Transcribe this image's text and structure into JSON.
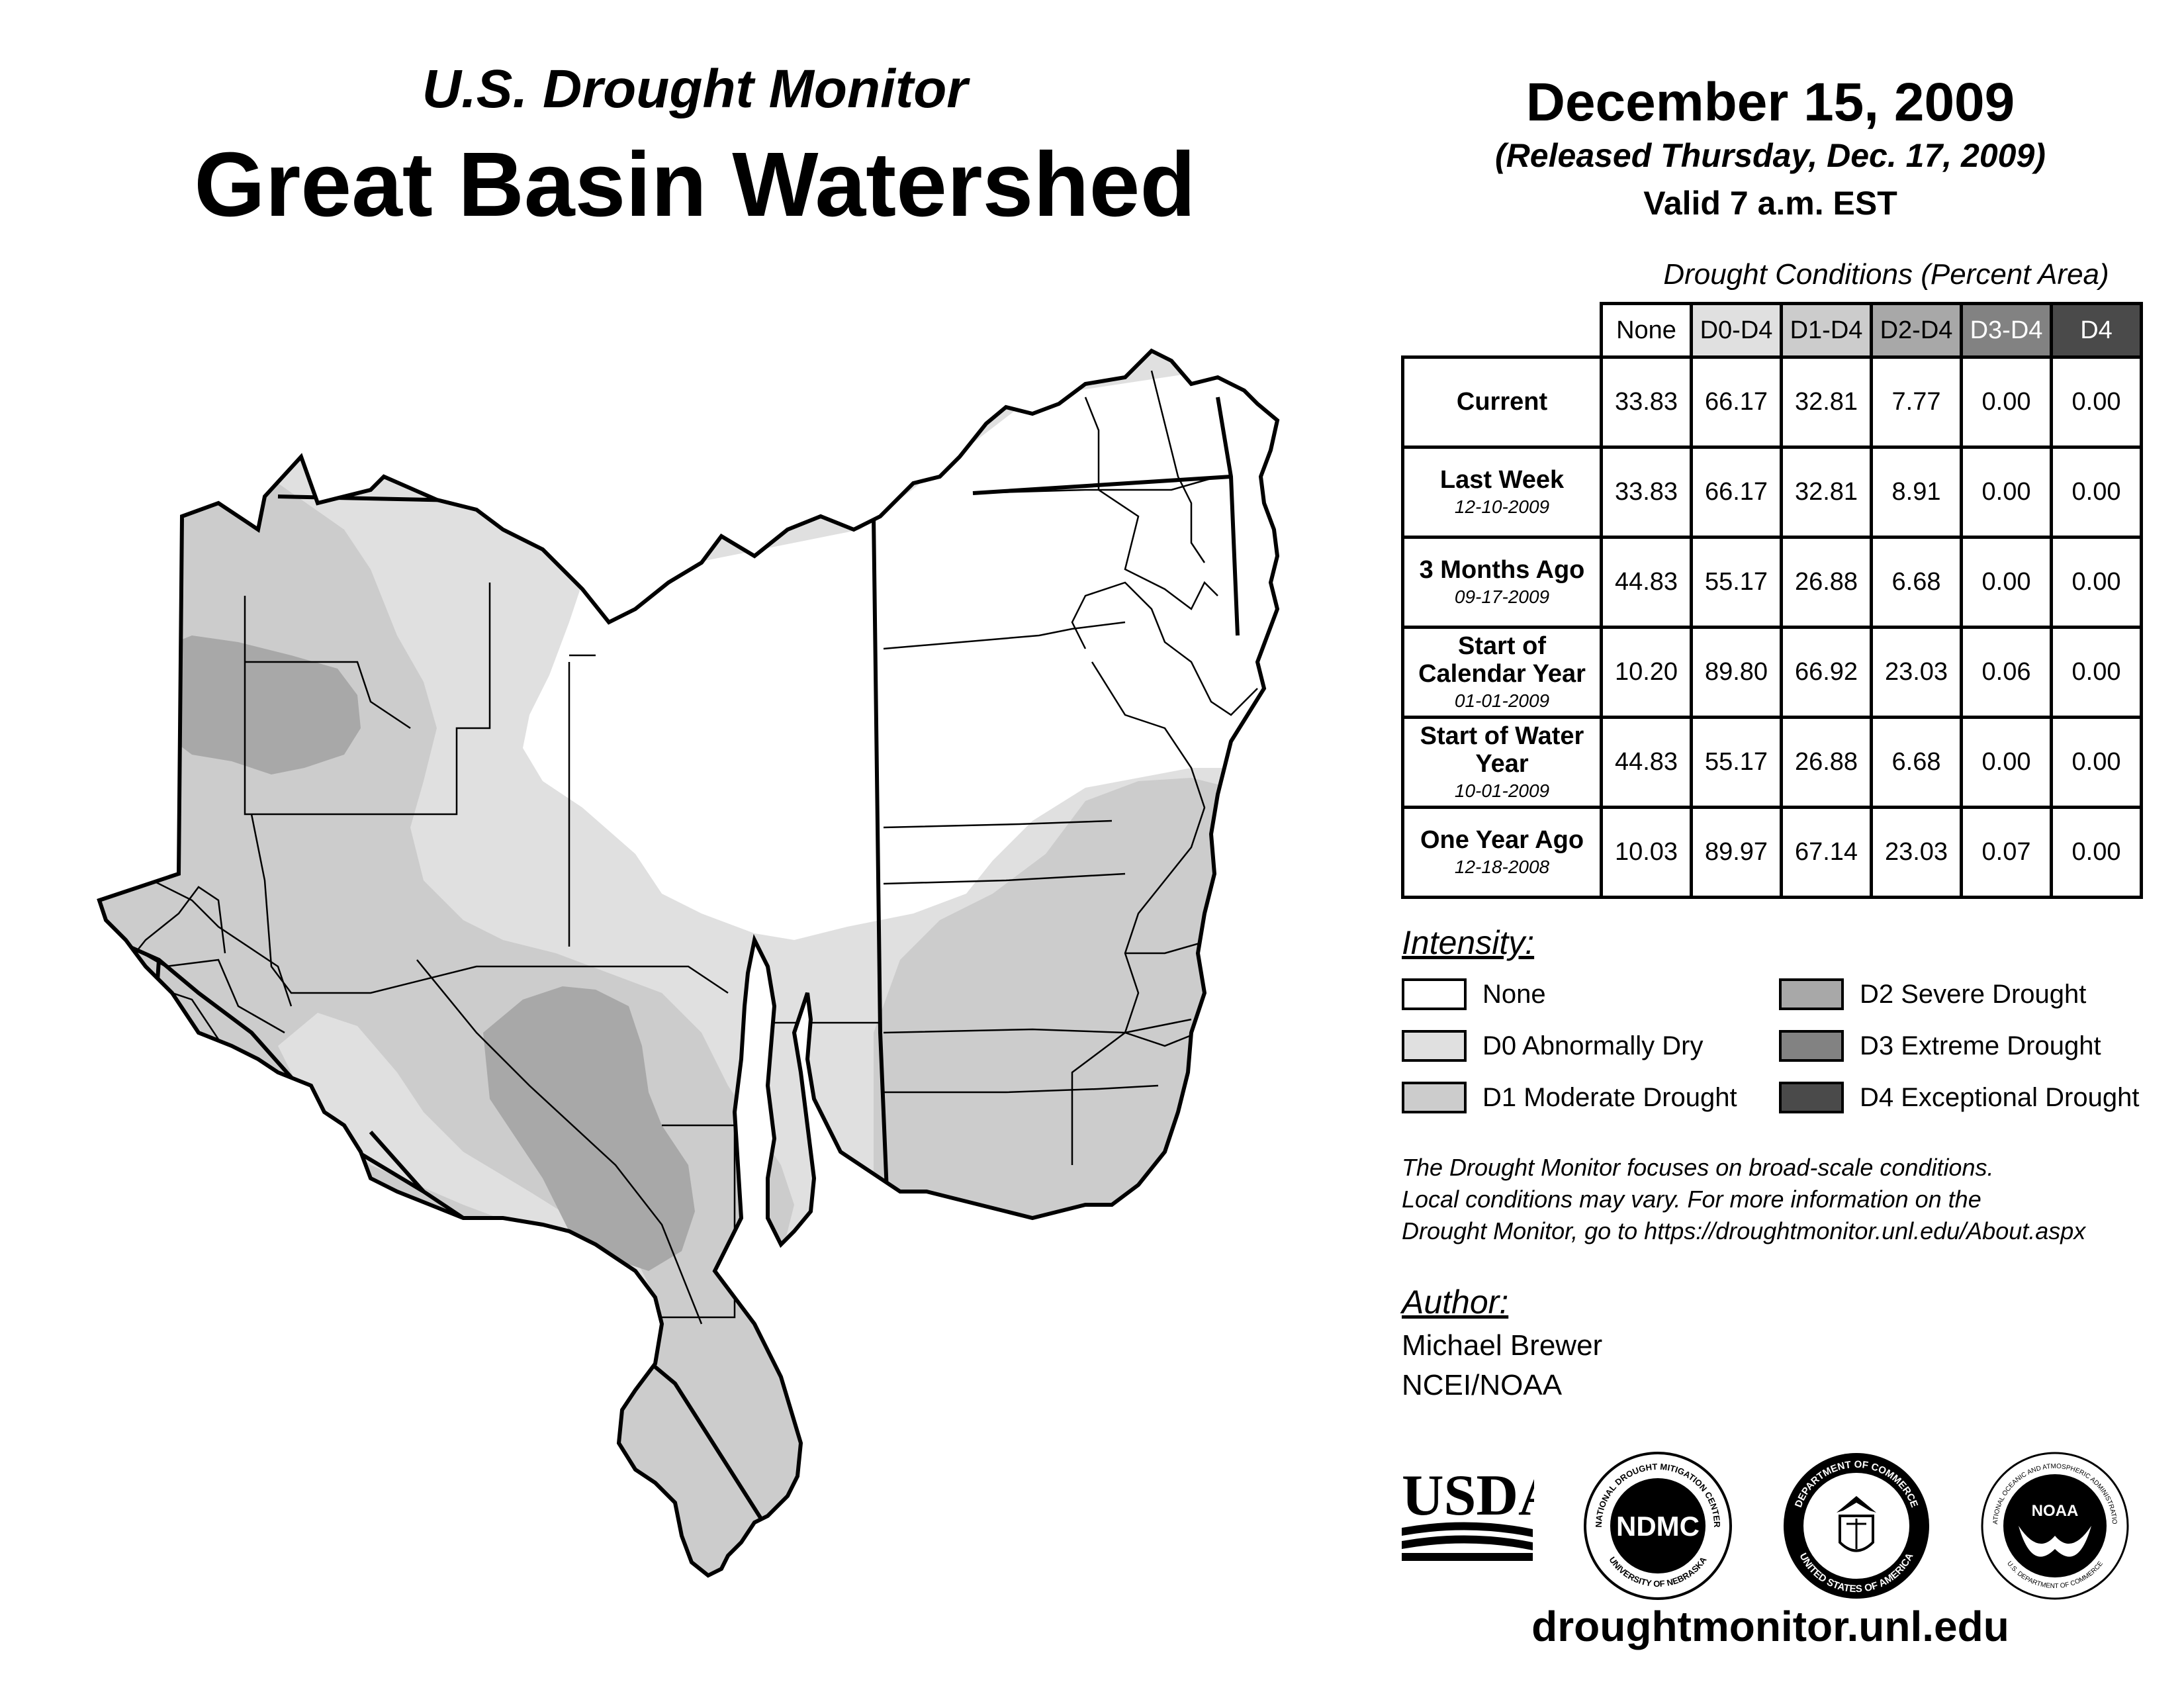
{
  "header": {
    "subtitle": "U.S. Drought Monitor",
    "title": "Great Basin Watershed",
    "date": "December 15, 2009",
    "released": "(Released Thursday, Dec. 17, 2009)",
    "valid": "Valid 7 a.m. EST"
  },
  "table": {
    "caption": "Drought Conditions (Percent Area)",
    "columns": [
      "None",
      "D0-D4",
      "D1-D4",
      "D2-D4",
      "D3-D4",
      "D4"
    ],
    "rows": [
      {
        "label": "Current",
        "date": "",
        "values": [
          "33.83",
          "66.17",
          "32.81",
          "7.77",
          "0.00",
          "0.00"
        ]
      },
      {
        "label": "Last Week",
        "date": "12-10-2009",
        "values": [
          "33.83",
          "66.17",
          "32.81",
          "8.91",
          "0.00",
          "0.00"
        ]
      },
      {
        "label": "3 Months Ago",
        "date": "09-17-2009",
        "values": [
          "44.83",
          "55.17",
          "26.88",
          "6.68",
          "0.00",
          "0.00"
        ]
      },
      {
        "label": "Start of Calendar Year",
        "date": "01-01-2009",
        "values": [
          "10.20",
          "89.80",
          "66.92",
          "23.03",
          "0.06",
          "0.00"
        ]
      },
      {
        "label": "Start of Water Year",
        "date": "10-01-2009",
        "values": [
          "44.83",
          "55.17",
          "26.88",
          "6.68",
          "0.00",
          "0.00"
        ]
      },
      {
        "label": "One Year Ago",
        "date": "12-18-2008",
        "values": [
          "10.03",
          "89.97",
          "67.14",
          "23.03",
          "0.07",
          "0.00"
        ]
      }
    ]
  },
  "legend": {
    "title": "Intensity:",
    "items": [
      {
        "label": "None",
        "color": "#ffffff"
      },
      {
        "label": "D0 Abnormally Dry",
        "color": "#e0e0e0"
      },
      {
        "label": "D1 Moderate Drought",
        "color": "#cccccc"
      },
      {
        "label": "D2 Severe Drought",
        "color": "#a8a8a8"
      },
      {
        "label": "D3 Extreme Drought",
        "color": "#828282"
      },
      {
        "label": "D4 Exceptional Drought",
        "color": "#4a4a4a"
      }
    ]
  },
  "note": {
    "line1": "The Drought Monitor focuses on broad-scale conditions.",
    "line2": "Local conditions may vary. For more information on the",
    "line3": "Drought Monitor, go to https://droughtmonitor.unl.edu/About.aspx"
  },
  "author": {
    "title": "Author:",
    "name": "Michael Brewer",
    "org": "NCEI/NOAA"
  },
  "logos": {
    "usda": "USDA",
    "ndmc": "NDMC",
    "ndmc_ring_top": "NATIONAL DROUGHT MITIGATION CENTER",
    "ndmc_ring_bottom": "UNIVERSITY OF NEBRASKA",
    "doc_ring_top": "DEPARTMENT OF COMMERCE",
    "doc_ring_bottom": "UNITED STATES OF AMERICA",
    "noaa": "NOAA",
    "noaa_ring_top": "NATIONAL OCEANIC AND ATMOSPHERIC ADMINISTRATION",
    "noaa_ring_bottom": "U.S. DEPARTMENT OF COMMERCE"
  },
  "footer": {
    "url": "droughtmonitor.unl.edu"
  },
  "colors": {
    "none": "#ffffff",
    "d0": "#e0e0e0",
    "d1": "#cccccc",
    "d2": "#a8a8a8",
    "d3": "#828282",
    "d4": "#4a4a4a"
  }
}
